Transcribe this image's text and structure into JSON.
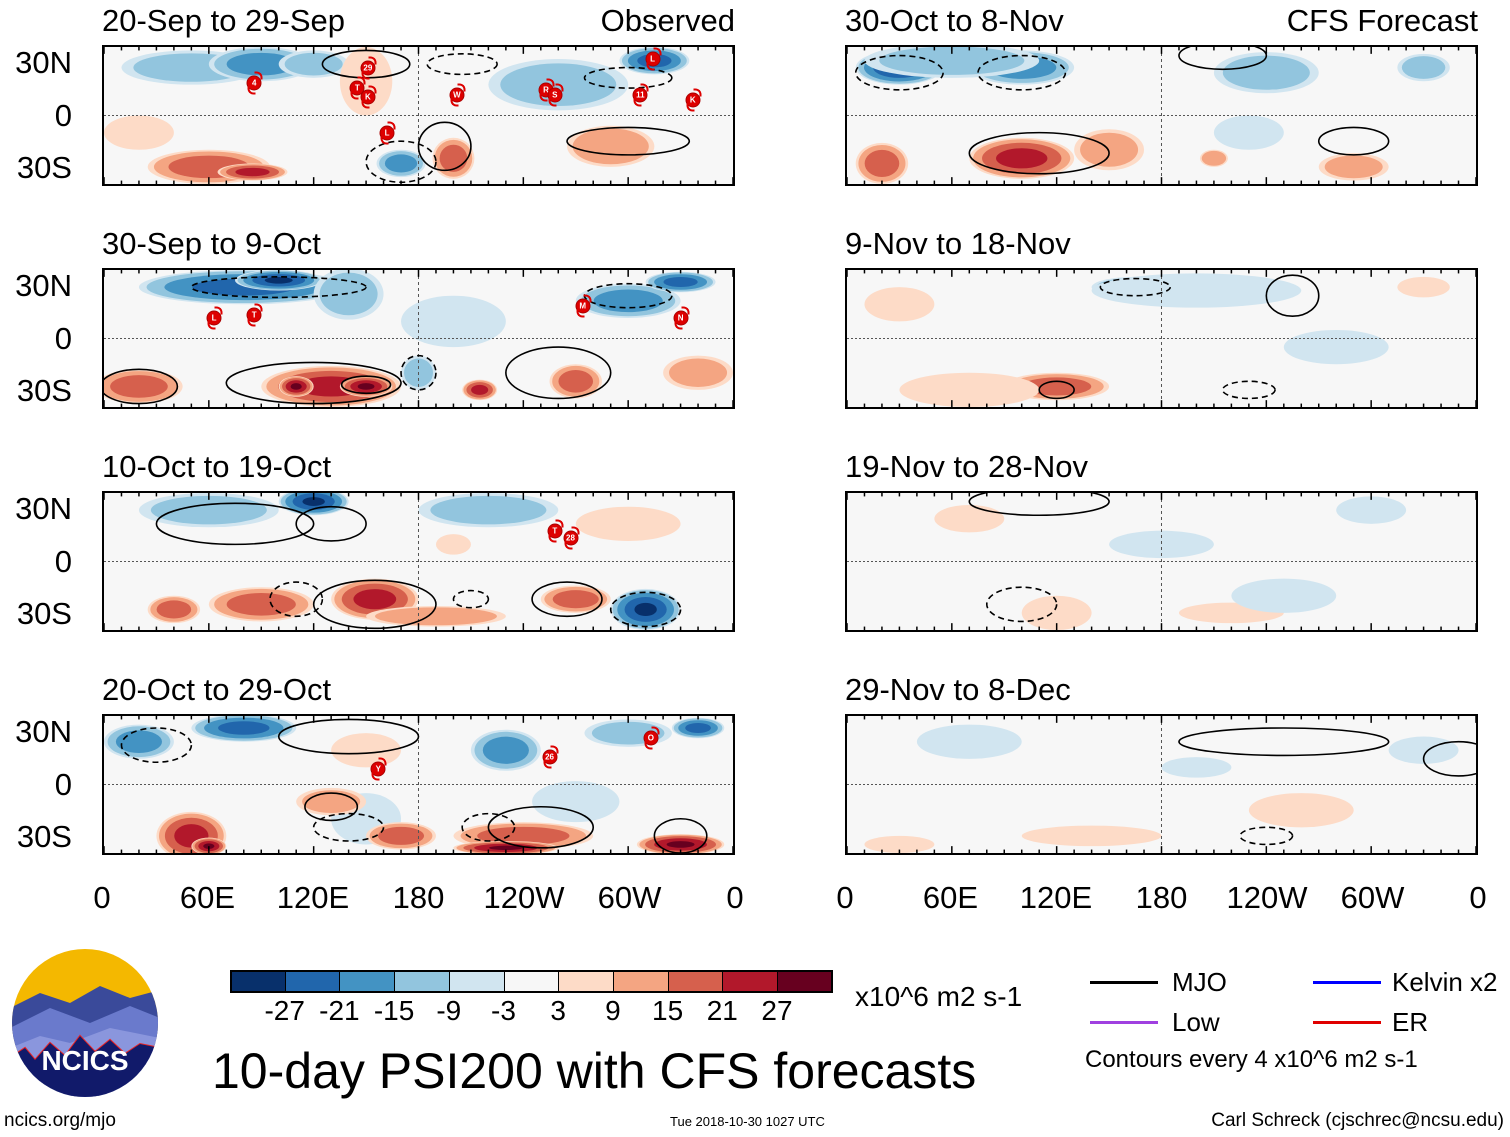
{
  "title": "10-day PSI200 with CFS forecasts",
  "footer": {
    "left": "ncics.org/mjo",
    "center": "Tue 2018-10-30 1027 UTC",
    "right": "Carl Schreck (cjschrec@ncsu.edu)"
  },
  "logo": {
    "text": "NCICS"
  },
  "column_labels": {
    "observed": "Observed",
    "forecast": "CFS Forecast"
  },
  "y_ticks": [
    "30N",
    "0",
    "30S"
  ],
  "x_ticks": [
    "0",
    "60E",
    "120E",
    "180",
    "120W",
    "60W",
    "0"
  ],
  "colorbar": {
    "colors": [
      "#08306b",
      "#2166ac",
      "#4393c3",
      "#92c5de",
      "#d1e5f0",
      "#f7f7f7",
      "#fddbc7",
      "#f4a582",
      "#d6604d",
      "#b2182b",
      "#67001f"
    ],
    "labels": [
      "-27",
      "-21",
      "-15",
      "-9",
      "-3",
      "3",
      "9",
      "15",
      "21",
      "27"
    ],
    "units": "x10^6 m2 s-1"
  },
  "legend": {
    "items": [
      {
        "label": "MJO",
        "color": "#000000"
      },
      {
        "label": "Kelvin x2",
        "color": "#0000ff"
      },
      {
        "label": "Low",
        "color": "#a040e0"
      },
      {
        "label": "ER",
        "color": "#e00000"
      }
    ],
    "note": "Contours every 4 x10^6 m2 s-1"
  },
  "chart_data": [
    {
      "type": "heatmap",
      "title": "20-Sep to 29-Sep",
      "group": "Observed",
      "xlim": [
        0,
        360
      ],
      "ylim": [
        -40,
        40
      ],
      "anomalies": [
        [
          50,
          28,
          40,
          10,
          -9
        ],
        [
          90,
          30,
          30,
          10,
          -15
        ],
        [
          120,
          30,
          20,
          8,
          -9
        ],
        [
          315,
          32,
          20,
          8,
          -21
        ],
        [
          260,
          18,
          40,
          15,
          -9
        ],
        [
          170,
          -28,
          14,
          8,
          -15
        ],
        [
          60,
          -30,
          35,
          10,
          15
        ],
        [
          85,
          -33,
          20,
          5,
          21
        ],
        [
          200,
          -25,
          12,
          12,
          15
        ],
        [
          290,
          -18,
          25,
          12,
          12
        ],
        [
          150,
          20,
          15,
          20,
          3
        ],
        [
          20,
          -10,
          20,
          10,
          3
        ]
      ],
      "contours": [
        [
          150,
          30,
          25,
          8,
          1
        ],
        [
          195,
          -18,
          15,
          14,
          1
        ],
        [
          300,
          -15,
          35,
          8,
          1
        ],
        [
          170,
          -27,
          20,
          12,
          -1
        ],
        [
          205,
          30,
          20,
          6,
          -1
        ],
        [
          300,
          22,
          25,
          6,
          -1
        ]
      ],
      "storms": [
        [
          86,
          19,
          "4"
        ],
        [
          151,
          28,
          "29"
        ],
        [
          145,
          16,
          "T"
        ],
        [
          151,
          11,
          "K"
        ],
        [
          162,
          -10,
          "L"
        ],
        [
          202,
          12,
          "W"
        ],
        [
          253,
          15,
          "R"
        ],
        [
          258,
          12,
          "S"
        ],
        [
          307,
          12,
          "11"
        ],
        [
          337,
          9,
          "K"
        ],
        [
          314,
          33,
          "L"
        ]
      ]
    },
    {
      "type": "heatmap",
      "title": "30-Sep to 9-Oct",
      "group": "Observed",
      "xlim": [
        0,
        360
      ],
      "ylim": [
        -40,
        40
      ],
      "anomalies": [
        [
          80,
          30,
          60,
          10,
          -21
        ],
        [
          100,
          34,
          25,
          6,
          -27
        ],
        [
          140,
          26,
          20,
          15,
          -9
        ],
        [
          300,
          22,
          30,
          10,
          -15
        ],
        [
          330,
          33,
          20,
          6,
          -21
        ],
        [
          200,
          10,
          30,
          15,
          -6
        ],
        [
          20,
          -28,
          25,
          10,
          15
        ],
        [
          130,
          -28,
          40,
          12,
          21
        ],
        [
          150,
          -28,
          15,
          6,
          27
        ],
        [
          110,
          -28,
          10,
          6,
          27
        ],
        [
          215,
          -30,
          10,
          6,
          21
        ],
        [
          270,
          -25,
          15,
          10,
          15
        ],
        [
          180,
          -20,
          10,
          10,
          -9
        ],
        [
          340,
          -20,
          20,
          10,
          9
        ]
      ],
      "contours": [
        [
          120,
          -26,
          50,
          12,
          1
        ],
        [
          20,
          -28,
          22,
          10,
          1
        ],
        [
          150,
          -27,
          14,
          5,
          1
        ],
        [
          100,
          30,
          50,
          6,
          -1
        ],
        [
          180,
          -20,
          10,
          10,
          -1
        ],
        [
          300,
          25,
          25,
          7,
          -1
        ],
        [
          260,
          -20,
          30,
          15,
          1
        ]
      ],
      "storms": [
        [
          63,
          12,
          "L"
        ],
        [
          86,
          14,
          "T"
        ],
        [
          274,
          19,
          "M"
        ],
        [
          330,
          12,
          "N"
        ]
      ]
    },
    {
      "type": "heatmap",
      "title": "10-Oct to 19-Oct",
      "group": "Observed",
      "xlim": [
        0,
        360
      ],
      "ylim": [
        -40,
        40
      ],
      "anomalies": [
        [
          60,
          30,
          40,
          10,
          -9
        ],
        [
          120,
          35,
          20,
          8,
          -27
        ],
        [
          220,
          30,
          40,
          10,
          -9
        ],
        [
          300,
          22,
          30,
          10,
          6
        ],
        [
          40,
          -28,
          15,
          8,
          15
        ],
        [
          90,
          -25,
          30,
          10,
          15
        ],
        [
          155,
          -22,
          25,
          12,
          21
        ],
        [
          270,
          -22,
          20,
          8,
          15
        ],
        [
          310,
          -28,
          20,
          12,
          -27
        ],
        [
          190,
          -32,
          40,
          6,
          12
        ],
        [
          200,
          10,
          10,
          6,
          3
        ]
      ],
      "contours": [
        [
          75,
          22,
          45,
          12,
          1
        ],
        [
          155,
          -25,
          35,
          14,
          1
        ],
        [
          265,
          -22,
          20,
          10,
          1
        ],
        [
          310,
          -28,
          20,
          10,
          -1
        ],
        [
          110,
          -22,
          15,
          10,
          -1
        ],
        [
          210,
          -22,
          10,
          5,
          -1
        ],
        [
          130,
          22,
          20,
          10,
          1
        ]
      ],
      "storms": [
        [
          258,
          18,
          "T"
        ],
        [
          267,
          14,
          "28"
        ]
      ]
    },
    {
      "type": "heatmap",
      "title": "20-Oct to 29-Oct",
      "group": "Observed",
      "xlim": [
        0,
        360
      ],
      "ylim": [
        -40,
        40
      ],
      "anomalies": [
        [
          20,
          25,
          20,
          10,
          -15
        ],
        [
          80,
          33,
          30,
          8,
          -21
        ],
        [
          300,
          30,
          25,
          8,
          -9
        ],
        [
          340,
          33,
          15,
          6,
          -21
        ],
        [
          230,
          20,
          20,
          12,
          -15
        ],
        [
          150,
          20,
          20,
          10,
          3
        ],
        [
          50,
          -30,
          20,
          14,
          21
        ],
        [
          60,
          -36,
          10,
          5,
          27
        ],
        [
          150,
          -20,
          20,
          15,
          -6
        ],
        [
          130,
          -10,
          20,
          8,
          9
        ],
        [
          240,
          -30,
          40,
          8,
          15
        ],
        [
          230,
          -37,
          30,
          4,
          27
        ],
        [
          330,
          -35,
          25,
          6,
          27
        ],
        [
          270,
          -10,
          25,
          12,
          -3
        ],
        [
          170,
          -30,
          20,
          8,
          15
        ]
      ],
      "contours": [
        [
          140,
          28,
          40,
          10,
          1
        ],
        [
          130,
          -13,
          15,
          8,
          1
        ],
        [
          250,
          -25,
          30,
          12,
          1
        ],
        [
          30,
          23,
          20,
          10,
          -1
        ],
        [
          140,
          -25,
          20,
          8,
          -1
        ],
        [
          220,
          -25,
          15,
          8,
          -1
        ],
        [
          330,
          -30,
          15,
          10,
          1
        ]
      ],
      "storms": [
        [
          157,
          9,
          "Y"
        ],
        [
          255,
          16,
          "26"
        ],
        [
          313,
          27,
          "O"
        ]
      ]
    },
    {
      "type": "heatmap",
      "title": "30-Oct to 8-Nov",
      "group": "CFS Forecast",
      "xlim": [
        0,
        360
      ],
      "ylim": [
        -40,
        40
      ],
      "anomalies": [
        [
          30,
          28,
          25,
          10,
          -27
        ],
        [
          100,
          28,
          30,
          10,
          -15
        ],
        [
          60,
          32,
          50,
          10,
          -9
        ],
        [
          240,
          25,
          30,
          12,
          -9
        ],
        [
          330,
          28,
          15,
          8,
          -9
        ],
        [
          100,
          -25,
          30,
          12,
          21
        ],
        [
          20,
          -28,
          15,
          12,
          15
        ],
        [
          150,
          -20,
          20,
          12,
          9
        ],
        [
          290,
          -30,
          20,
          8,
          9
        ],
        [
          210,
          -25,
          8,
          5,
          12
        ],
        [
          230,
          -10,
          20,
          10,
          -6
        ]
      ],
      "contours": [
        [
          110,
          -22,
          40,
          12,
          1
        ],
        [
          215,
          35,
          25,
          8,
          1
        ],
        [
          30,
          25,
          25,
          10,
          -1
        ],
        [
          100,
          25,
          25,
          10,
          -1
        ],
        [
          290,
          -15,
          20,
          8,
          1
        ]
      ],
      "storms": []
    },
    {
      "type": "heatmap",
      "title": "9-Nov to 18-Nov",
      "group": "CFS Forecast",
      "xlim": [
        0,
        360
      ],
      "ylim": [
        -40,
        40
      ],
      "anomalies": [
        [
          165,
          30,
          25,
          6,
          -15
        ],
        [
          200,
          28,
          60,
          10,
          -6
        ],
        [
          120,
          -28,
          30,
          8,
          15
        ],
        [
          70,
          -30,
          40,
          10,
          6
        ],
        [
          280,
          -5,
          30,
          10,
          -6
        ],
        [
          30,
          20,
          20,
          10,
          3
        ],
        [
          330,
          30,
          15,
          6,
          3
        ]
      ],
      "contours": [
        [
          165,
          30,
          20,
          5,
          -1
        ],
        [
          255,
          25,
          15,
          12,
          1
        ],
        [
          120,
          -30,
          10,
          5,
          1
        ],
        [
          230,
          -30,
          15,
          5,
          -1
        ]
      ],
      "storms": []
    },
    {
      "type": "heatmap",
      "title": "19-Nov to 28-Nov",
      "group": "CFS Forecast",
      "xlim": [
        0,
        360
      ],
      "ylim": [
        -40,
        40
      ],
      "anomalies": [
        [
          300,
          30,
          20,
          8,
          -6
        ],
        [
          180,
          10,
          30,
          8,
          -3
        ],
        [
          120,
          -30,
          20,
          10,
          6
        ],
        [
          220,
          -30,
          30,
          6,
          3
        ],
        [
          70,
          25,
          20,
          8,
          3
        ],
        [
          250,
          -20,
          30,
          10,
          -3
        ]
      ],
      "contours": [
        [
          110,
          35,
          40,
          8,
          1
        ],
        [
          100,
          -25,
          20,
          10,
          -1
        ]
      ],
      "storms": []
    },
    {
      "type": "heatmap",
      "title": "29-Nov to 8-Dec",
      "group": "CFS Forecast",
      "xlim": [
        0,
        360
      ],
      "ylim": [
        -40,
        40
      ],
      "anomalies": [
        [
          70,
          25,
          30,
          10,
          -3
        ],
        [
          140,
          -30,
          40,
          6,
          6
        ],
        [
          260,
          -15,
          30,
          10,
          3
        ],
        [
          330,
          20,
          20,
          8,
          -3
        ],
        [
          200,
          10,
          20,
          6,
          -3
        ],
        [
          30,
          -35,
          20,
          5,
          6
        ]
      ],
      "contours": [
        [
          350,
          15,
          20,
          10,
          1
        ],
        [
          250,
          25,
          60,
          8,
          1
        ],
        [
          240,
          -30,
          15,
          5,
          -1
        ]
      ],
      "storms": []
    }
  ]
}
